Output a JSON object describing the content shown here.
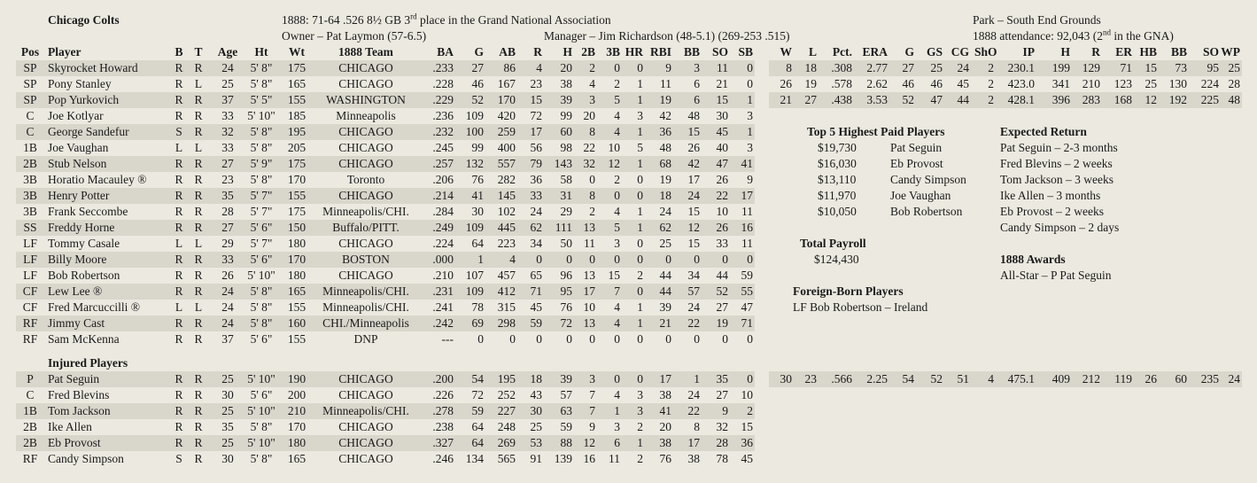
{
  "team_name": "Chicago Colts",
  "season_line": {
    "pre": "1888:  71-64  .526  8½ GB  3",
    "sup": "rd",
    "post": " place in the Grand National Association"
  },
  "owner_line": "Owner – Pat Laymon (57-6.5)",
  "manager_line": "Manager – Jim Richardson (48-5.1)  (269-253  .515)",
  "park_line": "Park – South End Grounds",
  "attendance_line": {
    "pre": "1888 attendance:  92,043  (2",
    "sup": "nd",
    "post": " in the GNA)"
  },
  "headers": {
    "pos": "Pos",
    "player": "Player",
    "b": "B",
    "t": "T",
    "age": "Age",
    "ht": "Ht",
    "wt": "Wt",
    "team": "1888 Team",
    "ba": "BA",
    "g": "G",
    "ab": "AB",
    "r": "R",
    "h": "H",
    "d": "2B",
    "tr": "3B",
    "hr": "HR",
    "rbi": "RBI",
    "bb": "BB",
    "so": "SO",
    "sb": "SB",
    "pw": "W",
    "pl": "L",
    "pct": "Pct.",
    "era": "ERA",
    "pg": "G",
    "gs": "GS",
    "cg": "CG",
    "sho": "ShO",
    "ip": "IP",
    "ph": "H",
    "pr": "R",
    "er": "ER",
    "hb": "HB",
    "pbb": "BB",
    "pso": "SO",
    "wp": "WP"
  },
  "players": [
    [
      "SP",
      "Skyrocket Howard",
      "R",
      "R",
      "24",
      "5' 8\"",
      "175",
      "CHICAGO",
      ".233",
      "27",
      "86",
      "4",
      "20",
      "2",
      "0",
      "0",
      "9",
      "3",
      "11",
      "0"
    ],
    [
      "SP",
      "Pony Stanley",
      "R",
      "L",
      "25",
      "5' 8\"",
      "165",
      "CHICAGO",
      ".228",
      "46",
      "167",
      "23",
      "38",
      "4",
      "2",
      "1",
      "11",
      "6",
      "21",
      "0"
    ],
    [
      "SP",
      "Pop Yurkovich",
      "R",
      "R",
      "37",
      "5' 5\"",
      "155",
      "WASHINGTON",
      ".229",
      "52",
      "170",
      "15",
      "39",
      "3",
      "5",
      "1",
      "19",
      "6",
      "15",
      "1"
    ],
    [
      "C",
      "Joe Kotlyar",
      "R",
      "R",
      "33",
      "5' 10\"",
      "185",
      "Minneapolis",
      ".236",
      "109",
      "420",
      "72",
      "99",
      "20",
      "4",
      "3",
      "42",
      "48",
      "30",
      "3"
    ],
    [
      "C",
      "George Sandefur",
      "S",
      "R",
      "32",
      "5' 8\"",
      "195",
      "CHICAGO",
      ".232",
      "100",
      "259",
      "17",
      "60",
      "8",
      "4",
      "1",
      "36",
      "15",
      "45",
      "1"
    ],
    [
      "1B",
      "Joe Vaughan",
      "L",
      "L",
      "33",
      "5' 8\"",
      "205",
      "CHICAGO",
      ".245",
      "99",
      "400",
      "56",
      "98",
      "22",
      "10",
      "5",
      "48",
      "26",
      "40",
      "3"
    ],
    [
      "2B",
      "Stub Nelson",
      "R",
      "R",
      "27",
      "5' 9\"",
      "175",
      "CHICAGO",
      ".257",
      "132",
      "557",
      "79",
      "143",
      "32",
      "12",
      "1",
      "68",
      "42",
      "47",
      "41"
    ],
    [
      "3B",
      "Horatio Macauley ®",
      "R",
      "R",
      "23",
      "5' 8\"",
      "170",
      "Toronto",
      ".206",
      "76",
      "282",
      "36",
      "58",
      "0",
      "2",
      "0",
      "19",
      "17",
      "26",
      "9"
    ],
    [
      "3B",
      "Henry Potter",
      "R",
      "R",
      "35",
      "5' 7\"",
      "155",
      "CHICAGO",
      ".214",
      "41",
      "145",
      "33",
      "31",
      "8",
      "0",
      "0",
      "18",
      "24",
      "22",
      "17"
    ],
    [
      "3B",
      "Frank Seccombe",
      "R",
      "R",
      "28",
      "5' 7\"",
      "175",
      "Minneapolis/CHI.",
      ".284",
      "30",
      "102",
      "24",
      "29",
      "2",
      "4",
      "1",
      "24",
      "15",
      "10",
      "11"
    ],
    [
      "SS",
      "Freddy Horne",
      "R",
      "R",
      "27",
      "5' 6\"",
      "150",
      "Buffalo/PITT.",
      ".249",
      "109",
      "445",
      "62",
      "111",
      "13",
      "5",
      "1",
      "62",
      "12",
      "26",
      "16"
    ],
    [
      "LF",
      "Tommy Casale",
      "L",
      "L",
      "29",
      "5' 7\"",
      "180",
      "CHICAGO",
      ".224",
      "64",
      "223",
      "34",
      "50",
      "11",
      "3",
      "0",
      "25",
      "15",
      "33",
      "11"
    ],
    [
      "LF",
      "Billy Moore",
      "R",
      "R",
      "33",
      "5' 6\"",
      "170",
      "BOSTON",
      ".000",
      "1",
      "4",
      "0",
      "0",
      "0",
      "0",
      "0",
      "0",
      "0",
      "0",
      "0"
    ],
    [
      "LF",
      "Bob Robertson",
      "R",
      "R",
      "26",
      "5' 10\"",
      "180",
      "CHICAGO",
      ".210",
      "107",
      "457",
      "65",
      "96",
      "13",
      "15",
      "2",
      "44",
      "34",
      "44",
      "59"
    ],
    [
      "CF",
      "Lew Lee ®",
      "R",
      "R",
      "24",
      "5' 8\"",
      "165",
      "Minneapolis/CHI.",
      ".231",
      "109",
      "412",
      "71",
      "95",
      "17",
      "7",
      "0",
      "44",
      "57",
      "52",
      "55"
    ],
    [
      "CF",
      "Fred Marcuccilli ®",
      "L",
      "L",
      "24",
      "5' 8\"",
      "155",
      "Minneapolis/CHI.",
      ".241",
      "78",
      "315",
      "45",
      "76",
      "10",
      "4",
      "1",
      "39",
      "24",
      "27",
      "47"
    ],
    [
      "RF",
      "Jimmy Cast",
      "R",
      "R",
      "24",
      "5' 8\"",
      "160",
      "CHI./Minneapolis",
      ".242",
      "69",
      "298",
      "59",
      "72",
      "13",
      "4",
      "1",
      "21",
      "22",
      "19",
      "71"
    ],
    [
      "RF",
      "Sam McKenna",
      "R",
      "R",
      "37",
      "5' 6\"",
      "155",
      "DNP",
      "---",
      "0",
      "0",
      "0",
      "0",
      "0",
      "0",
      "0",
      "0",
      "0",
      "0",
      "0"
    ]
  ],
  "pitching": [
    [
      "8",
      "18",
      ".308",
      "2.77",
      "27",
      "25",
      "24",
      "2",
      "230.1",
      "199",
      "129",
      "71",
      "15",
      "73",
      "95",
      "25"
    ],
    [
      "26",
      "19",
      ".578",
      "2.62",
      "46",
      "46",
      "45",
      "2",
      "423.0",
      "341",
      "210",
      "123",
      "25",
      "130",
      "224",
      "28"
    ],
    [
      "21",
      "27",
      ".438",
      "3.53",
      "52",
      "47",
      "44",
      "2",
      "428.1",
      "396",
      "283",
      "168",
      "12",
      "192",
      "225",
      "48"
    ]
  ],
  "injured_title": "Injured Players",
  "injured": [
    [
      "P",
      "Pat Seguin",
      "R",
      "R",
      "25",
      "5' 10\"",
      "190",
      "CHICAGO",
      ".200",
      "54",
      "195",
      "18",
      "39",
      "3",
      "0",
      "0",
      "17",
      "1",
      "35",
      "0"
    ],
    [
      "C",
      "Fred Blevins",
      "R",
      "R",
      "30",
      "5' 6\"",
      "200",
      "CHICAGO",
      ".226",
      "72",
      "252",
      "43",
      "57",
      "7",
      "4",
      "3",
      "38",
      "24",
      "27",
      "10"
    ],
    [
      "1B",
      "Tom Jackson",
      "R",
      "R",
      "25",
      "5' 10\"",
      "210",
      "Minneapolis/CHI.",
      ".278",
      "59",
      "227",
      "30",
      "63",
      "7",
      "1",
      "3",
      "41",
      "22",
      "9",
      "2"
    ],
    [
      "2B",
      "Ike Allen",
      "R",
      "R",
      "35",
      "5' 8\"",
      "170",
      "CHICAGO",
      ".238",
      "64",
      "248",
      "25",
      "59",
      "9",
      "3",
      "2",
      "20",
      "8",
      "32",
      "15"
    ],
    [
      "2B",
      "Eb Provost",
      "R",
      "R",
      "25",
      "5' 10\"",
      "180",
      "CHICAGO",
      ".327",
      "64",
      "269",
      "53",
      "88",
      "12",
      "6",
      "1",
      "38",
      "17",
      "28",
      "36"
    ],
    [
      "RF",
      "Candy Simpson",
      "S",
      "R",
      "30",
      "5' 8\"",
      "165",
      "CHICAGO",
      ".246",
      "134",
      "565",
      "91",
      "139",
      "16",
      "11",
      "2",
      "76",
      "38",
      "78",
      "45"
    ]
  ],
  "injured_pitching": [
    "30",
    "23",
    ".566",
    "2.25",
    "54",
    "52",
    "51",
    "4",
    "475.1",
    "409",
    "212",
    "119",
    "26",
    "60",
    "235",
    "24"
  ],
  "top_paid_title": "Top 5 Highest Paid Players",
  "top_paid": [
    [
      "$19,730",
      "Pat Seguin"
    ],
    [
      "$16,030",
      "Eb Provost"
    ],
    [
      "$13,110",
      "Candy Simpson"
    ],
    [
      "$11,970",
      "Joe Vaughan"
    ],
    [
      "$10,050",
      "Bob Robertson"
    ]
  ],
  "expected_title": "Expected Return",
  "expected": [
    "Pat Seguin – 2-3 months",
    "Fred Blevins – 2 weeks",
    "Tom Jackson – 3 weeks",
    "Ike Allen – 3 months",
    "Eb Provost – 2 weeks",
    "Candy Simpson – 2 days"
  ],
  "payroll_title": "Total Payroll",
  "payroll_value": "$124,430",
  "awards_title": "1888 Awards",
  "awards_line": "All-Star – P  Pat Seguin",
  "foreign_title": "Foreign-Born Players",
  "foreign_line": "LF Bob Robertson – Ireland"
}
